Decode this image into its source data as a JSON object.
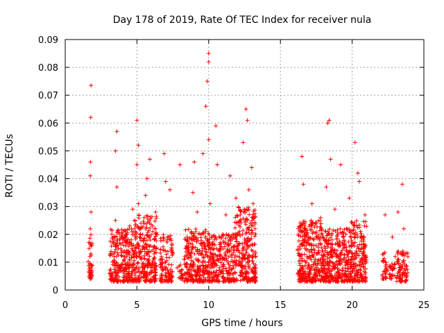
{
  "chart_data": {
    "type": "scatter",
    "title": "Day 178 of 2019, Rate Of TEC Index for receiver nula",
    "xlabel": "GPS time / hours",
    "ylabel": "ROTI / TECUs",
    "xlim": [
      0,
      25
    ],
    "ylim": [
      0,
      0.09
    ],
    "xticks": [
      0,
      5,
      10,
      15,
      20,
      25
    ],
    "xtick_labels": [
      "0",
      "5",
      "10",
      "15",
      "20",
      "25"
    ],
    "yticks": [
      0,
      0.01,
      0.02,
      0.03,
      0.04,
      0.05,
      0.06,
      0.07,
      0.08,
      0.09
    ],
    "ytick_labels": [
      "0",
      "0.01",
      "0.02",
      "0.03",
      "0.04",
      "0.05",
      "0.06",
      "0.07",
      "0.08",
      "0.09"
    ],
    "grid": true,
    "marker": "plus",
    "color": "#ff0000",
    "series": [
      {
        "x": [
          1.7,
          1.72,
          1.75,
          1.75,
          1.76,
          1.78,
          1.8,
          1.8,
          1.82,
          3.3,
          3.4,
          3.5,
          3.5,
          3.6,
          3.6,
          3.7,
          3.8,
          3.9,
          4.0,
          4.1,
          4.2,
          4.3,
          4.4,
          4.5,
          4.6,
          4.7,
          4.8,
          4.9,
          5.0,
          5.0,
          5.1,
          5.1,
          5.2,
          5.3,
          5.4,
          5.5,
          5.6,
          5.7,
          5.8,
          5.9,
          6.0,
          6.1,
          6.2,
          6.3,
          6.8,
          6.9,
          7.0,
          7.1,
          7.2,
          7.3,
          7.5,
          7.8,
          8.0,
          8.3,
          8.5,
          8.7,
          8.9,
          9.0,
          9.2,
          9.4,
          9.6,
          9.8,
          9.9,
          10.0,
          10.0,
          10.0,
          10.1,
          10.2,
          10.3,
          10.5,
          10.6,
          10.8,
          11.0,
          11.2,
          11.4,
          11.5,
          11.7,
          11.9,
          12.0,
          12.2,
          12.4,
          12.6,
          12.7,
          12.8,
          12.9,
          13.0,
          13.1,
          13.2,
          16.3,
          16.4,
          16.5,
          16.6,
          16.7,
          16.8,
          17.0,
          17.2,
          17.4,
          17.5,
          17.6,
          17.8,
          18.0,
          18.2,
          18.3,
          18.4,
          18.5,
          18.6,
          18.8,
          19.0,
          19.2,
          19.4,
          19.6,
          19.8,
          20.0,
          20.2,
          20.4,
          20.5,
          20.6,
          20.7,
          20.8,
          20.9,
          22.1,
          22.2,
          22.3,
          22.5,
          22.8,
          23.0,
          23.2,
          23.4,
          23.5,
          23.6,
          23.7
        ],
        "y": [
          0.005,
          0.012,
          0.022,
          0.041,
          0.046,
          0.062,
          0.0735,
          0.028,
          0.009,
          0.006,
          0.012,
          0.025,
          0.05,
          0.057,
          0.037,
          0.015,
          0.008,
          0.019,
          0.007,
          0.011,
          0.021,
          0.014,
          0.009,
          0.023,
          0.018,
          0.029,
          0.012,
          0.015,
          0.061,
          0.045,
          0.052,
          0.031,
          0.019,
          0.011,
          0.008,
          0.026,
          0.034,
          0.04,
          0.016,
          0.047,
          0.009,
          0.021,
          0.013,
          0.028,
          0.011,
          0.049,
          0.039,
          0.018,
          0.006,
          0.036,
          0.013,
          0.008,
          0.045,
          0.011,
          0.019,
          0.007,
          0.035,
          0.046,
          0.028,
          0.013,
          0.049,
          0.066,
          0.075,
          0.085,
          0.082,
          0.054,
          0.031,
          0.019,
          0.01,
          0.059,
          0.045,
          0.017,
          0.009,
          0.027,
          0.012,
          0.041,
          0.02,
          0.033,
          0.015,
          0.027,
          0.053,
          0.065,
          0.061,
          0.036,
          0.024,
          0.044,
          0.031,
          0.008,
          0.005,
          0.012,
          0.048,
          0.038,
          0.024,
          0.016,
          0.009,
          0.031,
          0.007,
          0.019,
          0.013,
          0.026,
          0.011,
          0.037,
          0.06,
          0.061,
          0.047,
          0.018,
          0.029,
          0.009,
          0.045,
          0.015,
          0.022,
          0.033,
          0.012,
          0.053,
          0.042,
          0.039,
          0.019,
          0.011,
          0.008,
          0.027,
          0.005,
          0.013,
          0.027,
          0.007,
          0.019,
          0.012,
          0.028,
          0.009,
          0.038,
          0.022,
          0.006
        ]
      }
    ],
    "clusters": [
      {
        "x_range": [
          1.6,
          1.9
        ],
        "y_range": [
          0.004,
          0.02
        ],
        "count": 40
      },
      {
        "x_range": [
          3.1,
          4.8
        ],
        "y_range": [
          0.003,
          0.022
        ],
        "count": 260
      },
      {
        "x_range": [
          4.8,
          6.4
        ],
        "y_range": [
          0.003,
          0.028
        ],
        "count": 260
      },
      {
        "x_range": [
          6.6,
          7.5
        ],
        "y_range": [
          0.003,
          0.02
        ],
        "count": 110
      },
      {
        "x_range": [
          7.9,
          8.2
        ],
        "y_range": [
          0.004,
          0.01
        ],
        "count": 20
      },
      {
        "x_range": [
          8.3,
          10.1
        ],
        "y_range": [
          0.003,
          0.022
        ],
        "count": 280
      },
      {
        "x_range": [
          10.1,
          11.8
        ],
        "y_range": [
          0.003,
          0.02
        ],
        "count": 230
      },
      {
        "x_range": [
          11.8,
          13.3
        ],
        "y_range": [
          0.003,
          0.03
        ],
        "count": 260
      },
      {
        "x_range": [
          16.2,
          18.0
        ],
        "y_range": [
          0.003,
          0.025
        ],
        "count": 320
      },
      {
        "x_range": [
          18.0,
          19.6
        ],
        "y_range": [
          0.003,
          0.022
        ],
        "count": 280
      },
      {
        "x_range": [
          19.6,
          21.0
        ],
        "y_range": [
          0.003,
          0.025
        ],
        "count": 240
      },
      {
        "x_range": [
          22.1,
          22.4
        ],
        "y_range": [
          0.004,
          0.015
        ],
        "count": 30
      },
      {
        "x_range": [
          22.6,
          23.0
        ],
        "y_range": [
          0.004,
          0.01
        ],
        "count": 25
      },
      {
        "x_range": [
          23.1,
          23.9
        ],
        "y_range": [
          0.003,
          0.014
        ],
        "count": 80
      }
    ]
  }
}
